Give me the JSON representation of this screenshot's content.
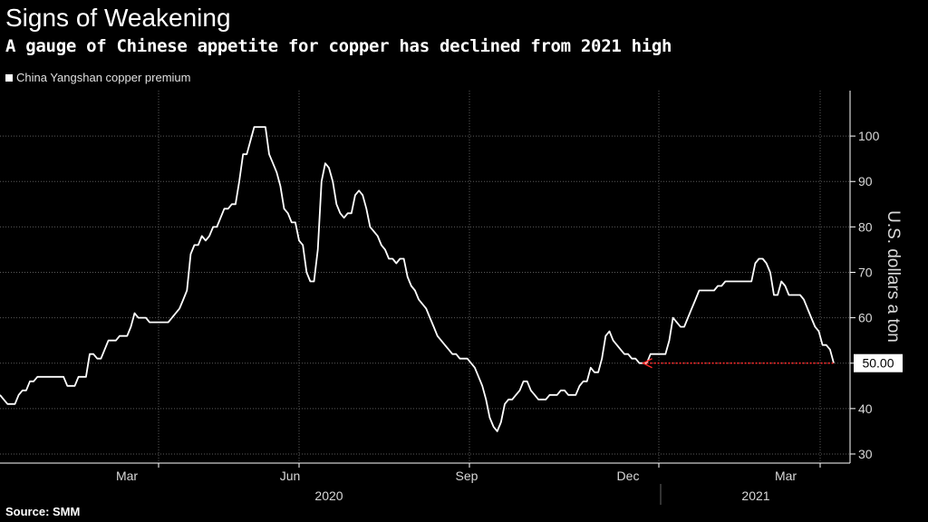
{
  "title": "Signs of Weakening",
  "subtitle": "A gauge of Chinese appetite for copper has declined from 2021 high",
  "source": "Source: SMM",
  "colors": {
    "background": "#000000",
    "line": "#ffffff",
    "grid": "#5a5a5a",
    "arrow": "#ff2a2a"
  },
  "chart_data": {
    "type": "line",
    "title": "Signs of Weakening",
    "ylabel": "U.S. dollars a ton",
    "xlabel": "",
    "ylim": [
      28,
      110
    ],
    "yticks": [
      30,
      40,
      50,
      60,
      70,
      80,
      90,
      100
    ],
    "x_months": [
      "Mar",
      "Jun",
      "Sep",
      "Dec",
      "Mar"
    ],
    "x_years": [
      "2020",
      "2021"
    ],
    "legend": [
      "China Yangshan copper premium"
    ],
    "last_value_label": "50.00",
    "series": [
      {
        "name": "China Yangshan copper premium",
        "points": [
          [
            0,
            43
          ],
          [
            1,
            42
          ],
          [
            2,
            41
          ],
          [
            3,
            41
          ],
          [
            4,
            41
          ],
          [
            5,
            43
          ],
          [
            6,
            44
          ],
          [
            7,
            44
          ],
          [
            8,
            46
          ],
          [
            9,
            46
          ],
          [
            10,
            47
          ],
          [
            11,
            47
          ],
          [
            12,
            47
          ],
          [
            13,
            47
          ],
          [
            14,
            47
          ],
          [
            15,
            47
          ],
          [
            16,
            47
          ],
          [
            17,
            47
          ],
          [
            18,
            45
          ],
          [
            19,
            45
          ],
          [
            20,
            45
          ],
          [
            21,
            47
          ],
          [
            22,
            47
          ],
          [
            23,
            47
          ],
          [
            24,
            52
          ],
          [
            25,
            52
          ],
          [
            26,
            51
          ],
          [
            27,
            51
          ],
          [
            28,
            53
          ],
          [
            29,
            55
          ],
          [
            30,
            55
          ],
          [
            31,
            55
          ],
          [
            32,
            56
          ],
          [
            33,
            56
          ],
          [
            34,
            56
          ],
          [
            35,
            58
          ],
          [
            36,
            61
          ],
          [
            37,
            60
          ],
          [
            38,
            60
          ],
          [
            39,
            60
          ],
          [
            40,
            59
          ],
          [
            41,
            59
          ],
          [
            42,
            59
          ],
          [
            43,
            59
          ],
          [
            44,
            59
          ],
          [
            45,
            59
          ],
          [
            46,
            60
          ],
          [
            47,
            61
          ],
          [
            48,
            62
          ],
          [
            49,
            64
          ],
          [
            50,
            66
          ],
          [
            51,
            74
          ],
          [
            52,
            76
          ],
          [
            53,
            76
          ],
          [
            54,
            78
          ],
          [
            55,
            77
          ],
          [
            56,
            78
          ],
          [
            57,
            80
          ],
          [
            58,
            80
          ],
          [
            59,
            82
          ],
          [
            60,
            84
          ],
          [
            61,
            84
          ],
          [
            62,
            85
          ],
          [
            63,
            85
          ],
          [
            64,
            90
          ],
          [
            65,
            96
          ],
          [
            66,
            96
          ],
          [
            67,
            99
          ],
          [
            68,
            102
          ],
          [
            69,
            102
          ],
          [
            70,
            102
          ],
          [
            71,
            102
          ],
          [
            72,
            96
          ],
          [
            73,
            94
          ],
          [
            74,
            92
          ],
          [
            75,
            89
          ],
          [
            76,
            84
          ],
          [
            77,
            83
          ],
          [
            78,
            81
          ],
          [
            79,
            81
          ],
          [
            80,
            77
          ],
          [
            81,
            76
          ],
          [
            82,
            70
          ],
          [
            83,
            68
          ],
          [
            84,
            68
          ],
          [
            85,
            75
          ],
          [
            86,
            90
          ],
          [
            87,
            94
          ],
          [
            88,
            93
          ],
          [
            89,
            90
          ],
          [
            90,
            85
          ],
          [
            91,
            83
          ],
          [
            92,
            82
          ],
          [
            93,
            83
          ],
          [
            94,
            83
          ],
          [
            95,
            87
          ],
          [
            96,
            88
          ],
          [
            97,
            87
          ],
          [
            98,
            84
          ],
          [
            99,
            80
          ],
          [
            100,
            79
          ],
          [
            101,
            78
          ],
          [
            102,
            76
          ],
          [
            103,
            75
          ],
          [
            104,
            73
          ],
          [
            105,
            73
          ],
          [
            106,
            72
          ],
          [
            107,
            73
          ],
          [
            108,
            73
          ],
          [
            109,
            69
          ],
          [
            110,
            67
          ],
          [
            111,
            66
          ],
          [
            112,
            64
          ],
          [
            113,
            63
          ],
          [
            114,
            62
          ],
          [
            115,
            60
          ],
          [
            116,
            58
          ],
          [
            117,
            56
          ],
          [
            118,
            55
          ],
          [
            119,
            54
          ],
          [
            120,
            53
          ],
          [
            121,
            52
          ],
          [
            122,
            52
          ],
          [
            123,
            51
          ],
          [
            124,
            51
          ],
          [
            125,
            51
          ],
          [
            126,
            50
          ],
          [
            127,
            49
          ],
          [
            128,
            47
          ],
          [
            129,
            45
          ],
          [
            130,
            42
          ],
          [
            131,
            38
          ],
          [
            132,
            36
          ],
          [
            133,
            35
          ],
          [
            134,
            37
          ],
          [
            135,
            41
          ],
          [
            136,
            42
          ],
          [
            137,
            42
          ],
          [
            138,
            43
          ],
          [
            139,
            44
          ],
          [
            140,
            46
          ],
          [
            141,
            46
          ],
          [
            142,
            44
          ],
          [
            143,
            43
          ],
          [
            144,
            42
          ],
          [
            145,
            42
          ],
          [
            146,
            42
          ],
          [
            147,
            43
          ],
          [
            148,
            43
          ],
          [
            149,
            43
          ],
          [
            150,
            44
          ],
          [
            151,
            44
          ],
          [
            152,
            43
          ],
          [
            153,
            43
          ],
          [
            154,
            43
          ],
          [
            155,
            45
          ],
          [
            156,
            46
          ],
          [
            157,
            46
          ],
          [
            158,
            49
          ],
          [
            159,
            48
          ],
          [
            160,
            48
          ],
          [
            161,
            51
          ],
          [
            162,
            56
          ],
          [
            163,
            57
          ],
          [
            164,
            55
          ],
          [
            165,
            54
          ],
          [
            166,
            53
          ],
          [
            167,
            52
          ],
          [
            168,
            52
          ],
          [
            169,
            51
          ],
          [
            170,
            51
          ],
          [
            171,
            50
          ],
          [
            172,
            50
          ],
          [
            173,
            50
          ],
          [
            174,
            52
          ],
          [
            175,
            52
          ],
          [
            176,
            52
          ],
          [
            177,
            52
          ],
          [
            178,
            52
          ],
          [
            179,
            55
          ],
          [
            180,
            60
          ],
          [
            181,
            59
          ],
          [
            182,
            58
          ],
          [
            183,
            58
          ],
          [
            184,
            60
          ],
          [
            185,
            62
          ],
          [
            186,
            64
          ],
          [
            187,
            66
          ],
          [
            188,
            66
          ],
          [
            189,
            66
          ],
          [
            190,
            66
          ],
          [
            191,
            66
          ],
          [
            192,
            67
          ],
          [
            193,
            67
          ],
          [
            194,
            68
          ],
          [
            195,
            68
          ],
          [
            196,
            68
          ],
          [
            197,
            68
          ],
          [
            198,
            68
          ],
          [
            199,
            68
          ],
          [
            200,
            68
          ],
          [
            201,
            68
          ],
          [
            202,
            72
          ],
          [
            203,
            73
          ],
          [
            204,
            73
          ],
          [
            205,
            72
          ],
          [
            206,
            70
          ],
          [
            207,
            65
          ],
          [
            208,
            65
          ],
          [
            209,
            68
          ],
          [
            210,
            67
          ],
          [
            211,
            65
          ],
          [
            212,
            65
          ],
          [
            213,
            65
          ],
          [
            214,
            65
          ],
          [
            215,
            64
          ],
          [
            216,
            62
          ],
          [
            217,
            60
          ],
          [
            218,
            58
          ],
          [
            219,
            57
          ],
          [
            220,
            54
          ],
          [
            221,
            54
          ],
          [
            222,
            53
          ],
          [
            223,
            50
          ]
        ]
      }
    ]
  }
}
